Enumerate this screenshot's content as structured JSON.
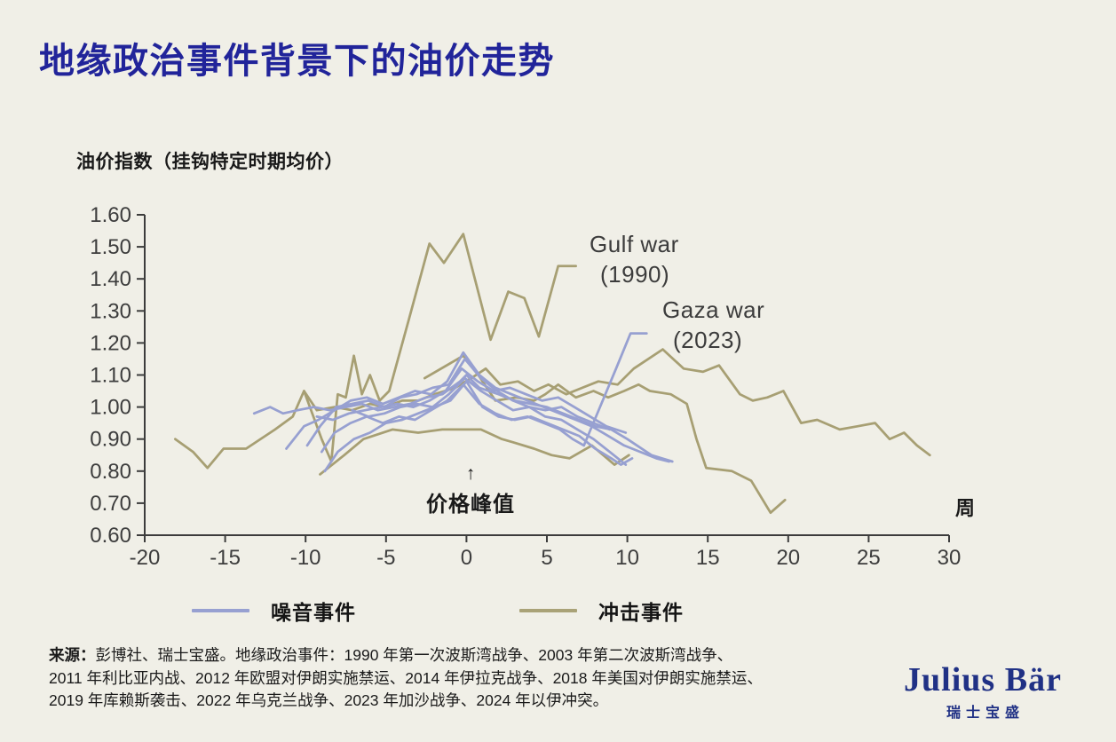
{
  "title": "地缘政治事件背景下的油价走势",
  "annotations": {
    "gulf": {
      "line1": "Gulf war",
      "line2": "(1990)"
    },
    "gaza": {
      "line1": "Gaza war",
      "line2": "(2023)"
    },
    "peak": {
      "arrow": "↑",
      "label": "价格峰值"
    }
  },
  "legend": {
    "items": [
      {
        "label": "噪音事件",
        "color": "#97a0d1"
      },
      {
        "label": "冲击事件",
        "color": "#a9a277"
      }
    ]
  },
  "source": {
    "prefix": "来源：",
    "line1": "彭博社、瑞士宝盛。地缘政治事件：1990 年第一次波斯湾战争、2003 年第二次波斯湾战争、",
    "line2": "2011 年利比亚内战、2012 年欧盟对伊朗实施禁运、2014 年伊拉克战争、2018 年美国对伊朗实施禁运、",
    "line3": "2019 年库赖斯袭击、2022 年乌克兰战争、2023 年加沙战争、2024 年以伊冲突。"
  },
  "logo": {
    "wordmark": "Julius Bär",
    "subtitle": "瑞士宝盛"
  },
  "chart_data": {
    "type": "line",
    "title": "地缘政治事件背景下的油价走势",
    "xlabel": "周",
    "ylabel": "油价指数（挂钩特定时期均价）",
    "xlim": [
      -20,
      30
    ],
    "ylim": [
      0.6,
      1.6
    ],
    "grid": false,
    "legend_position": "bottom",
    "x_axis": {
      "label": "周",
      "ticks": [
        -20,
        -15,
        -10,
        -5,
        0,
        5,
        10,
        15,
        20,
        25,
        30
      ],
      "tick_labels": [
        "-20",
        "-15",
        "-10",
        "-5",
        "0",
        "5",
        "10",
        "15",
        "20",
        "25",
        "30"
      ]
    },
    "y_axis": {
      "label": "油价指数（挂钩特定时期均价）",
      "ticks": [
        0.6,
        0.7,
        0.8,
        0.9,
        1.0,
        1.1,
        1.2,
        1.3,
        1.4,
        1.5,
        1.6
      ],
      "tick_labels": [
        "0.60",
        "0.70",
        "0.80",
        "0.90",
        "1.00",
        "1.10",
        "1.20",
        "1.30",
        "1.40",
        "1.50",
        "1.60"
      ]
    },
    "colors": {
      "噪音事件": "#97a0d1",
      "冲击事件": "#a79f73"
    },
    "annotations": [
      {
        "text": "Gulf war (1990)",
        "x": 7.5,
        "y": 1.44
      },
      {
        "text": "Gaza war (2023)",
        "x": 12,
        "y": 1.24
      },
      {
        "text": "价格峰值",
        "x": 0,
        "y": 0.72,
        "arrow": "↑"
      }
    ],
    "series": [
      {
        "id": "gulf-war-1990",
        "name": "Gulf war (1990)",
        "group": "冲击事件",
        "points": [
          [
            -10.1,
            1.05
          ],
          [
            -9.0,
            0.9
          ],
          [
            -8.4,
            0.83
          ],
          [
            -8.0,
            1.04
          ],
          [
            -7.5,
            1.03
          ],
          [
            -7.0,
            1.16
          ],
          [
            -6.5,
            1.04
          ],
          [
            -6.0,
            1.1
          ],
          [
            -5.4,
            1.02
          ],
          [
            -4.8,
            1.05
          ],
          [
            -3.6,
            1.27
          ],
          [
            -2.3,
            1.51
          ],
          [
            -1.4,
            1.45
          ],
          [
            -0.2,
            1.54
          ],
          [
            1.5,
            1.21
          ],
          [
            2.6,
            1.36
          ],
          [
            3.6,
            1.34
          ],
          [
            4.5,
            1.22
          ],
          [
            5.7,
            1.44
          ],
          [
            6.8,
            1.44
          ]
        ]
      },
      {
        "id": "shock-2",
        "name": "冲击事件-2",
        "group": "冲击事件",
        "points": [
          [
            -18.1,
            0.9
          ],
          [
            -17.0,
            0.86
          ],
          [
            -16.1,
            0.81
          ],
          [
            -15.1,
            0.87
          ],
          [
            -13.7,
            0.87
          ],
          [
            -11.9,
            0.93
          ],
          [
            -10.8,
            0.97
          ],
          [
            -10.1,
            1.05
          ],
          [
            -9.3,
            0.99
          ],
          [
            -8.2,
            1.0
          ],
          [
            -7.1,
            0.99
          ],
          [
            -6.0,
            1.01
          ],
          [
            -5.0,
            1.0
          ],
          [
            -4.0,
            1.02
          ],
          [
            -3.0,
            1.02
          ],
          [
            -2.0,
            1.04
          ],
          [
            -0.7,
            1.06
          ],
          [
            0.3,
            1.09
          ],
          [
            1.2,
            1.12
          ],
          [
            2.1,
            1.07
          ],
          [
            3.2,
            1.08
          ],
          [
            4.2,
            1.05
          ],
          [
            5.1,
            1.07
          ],
          [
            6.2,
            1.04
          ],
          [
            7.2,
            1.06
          ],
          [
            8.2,
            1.08
          ],
          [
            9.4,
            1.07
          ],
          [
            10.4,
            1.12
          ],
          [
            12.2,
            1.18
          ],
          [
            13.5,
            1.12
          ],
          [
            14.7,
            1.11
          ],
          [
            15.7,
            1.13
          ],
          [
            17.0,
            1.04
          ],
          [
            17.8,
            1.02
          ],
          [
            18.7,
            1.03
          ],
          [
            19.7,
            1.05
          ],
          [
            20.8,
            0.95
          ],
          [
            21.8,
            0.96
          ],
          [
            23.2,
            0.93
          ],
          [
            24.3,
            0.94
          ],
          [
            25.4,
            0.95
          ],
          [
            26.3,
            0.9
          ],
          [
            27.2,
            0.92
          ],
          [
            28.0,
            0.88
          ],
          [
            28.8,
            0.85
          ]
        ]
      },
      {
        "id": "shock-3",
        "name": "冲击事件-3",
        "group": "冲击事件",
        "points": [
          [
            -9.1,
            0.79
          ],
          [
            -7.6,
            0.85
          ],
          [
            -6.4,
            0.9
          ],
          [
            -4.6,
            0.93
          ],
          [
            -3.0,
            0.92
          ],
          [
            -1.5,
            0.93
          ],
          [
            0.0,
            0.93
          ],
          [
            0.9,
            0.93
          ],
          [
            2.2,
            0.9
          ],
          [
            2.9,
            0.89
          ],
          [
            4.2,
            0.87
          ],
          [
            5.3,
            0.85
          ],
          [
            6.4,
            0.84
          ],
          [
            7.8,
            0.88
          ],
          [
            9.2,
            0.82
          ],
          [
            10.1,
            0.85
          ]
        ]
      },
      {
        "id": "shock-4",
        "name": "冲击事件-4",
        "group": "冲击事件",
        "points": [
          [
            -2.6,
            1.09
          ],
          [
            -0.2,
            1.16
          ],
          [
            0.6,
            1.11
          ],
          [
            1.8,
            1.02
          ],
          [
            3.1,
            1.03
          ],
          [
            4.2,
            1.02
          ],
          [
            4.9,
            1.04
          ],
          [
            5.7,
            1.07
          ],
          [
            6.8,
            1.03
          ],
          [
            7.9,
            1.05
          ],
          [
            8.8,
            1.03
          ],
          [
            9.8,
            1.05
          ],
          [
            10.7,
            1.07
          ],
          [
            11.4,
            1.05
          ],
          [
            12.7,
            1.04
          ],
          [
            13.7,
            1.01
          ],
          [
            14.3,
            0.9
          ],
          [
            14.9,
            0.81
          ],
          [
            16.5,
            0.8
          ],
          [
            17.7,
            0.77
          ],
          [
            18.9,
            0.67
          ],
          [
            19.8,
            0.71
          ]
        ]
      },
      {
        "id": "noise-1",
        "name": "噪音事件-1",
        "group": "噪音事件",
        "points": [
          [
            -13.2,
            0.98
          ],
          [
            -12.2,
            1.0
          ],
          [
            -11.4,
            0.98
          ],
          [
            -10.5,
            0.99
          ],
          [
            -9.5,
            1.0
          ],
          [
            -8.5,
            0.99
          ],
          [
            -7.5,
            1.0
          ],
          [
            -6.5,
            1.01
          ],
          [
            -5.5,
            0.99
          ],
          [
            -4.5,
            1.0
          ],
          [
            -3.5,
            1.01
          ],
          [
            -2.5,
            1.03
          ],
          [
            -1.5,
            1.04
          ],
          [
            -0.4,
            1.08
          ],
          [
            0.0,
            1.1
          ],
          [
            0.8,
            1.06
          ],
          [
            2.0,
            1.04
          ],
          [
            3.0,
            1.02
          ],
          [
            4.0,
            1.01
          ],
          [
            5.0,
            1.0
          ],
          [
            6.0,
            0.98
          ],
          [
            7.0,
            0.96
          ],
          [
            8.0,
            0.94
          ],
          [
            9.0,
            0.93
          ],
          [
            10.0,
            0.9
          ],
          [
            11.5,
            0.85
          ],
          [
            12.8,
            0.83
          ]
        ]
      },
      {
        "id": "noise-2",
        "name": "噪音事件-2",
        "group": "噪音事件",
        "points": [
          [
            -11.2,
            0.87
          ],
          [
            -10.1,
            0.94
          ],
          [
            -9.2,
            0.96
          ],
          [
            -8.2,
            0.99
          ],
          [
            -7.2,
            1.02
          ],
          [
            -6.2,
            1.03
          ],
          [
            -5.2,
            1.01
          ],
          [
            -4.2,
            1.03
          ],
          [
            -3.2,
            1.05
          ],
          [
            -2.2,
            1.04
          ],
          [
            -1.2,
            1.08
          ],
          [
            -0.2,
            1.17
          ],
          [
            0.8,
            1.1
          ],
          [
            1.8,
            1.06
          ],
          [
            2.8,
            1.04
          ],
          [
            3.8,
            1.02
          ],
          [
            4.8,
            1.0
          ],
          [
            5.8,
            0.98
          ],
          [
            6.8,
            0.96
          ],
          [
            7.8,
            0.94
          ],
          [
            8.8,
            0.91
          ],
          [
            9.8,
            0.88
          ],
          [
            10.8,
            0.86
          ],
          [
            11.8,
            0.84
          ],
          [
            12.6,
            0.83
          ]
        ]
      },
      {
        "id": "noise-3",
        "name": "噪音事件-3",
        "group": "噪音事件",
        "points": [
          [
            -8.8,
            0.8
          ],
          [
            -8.0,
            0.86
          ],
          [
            -7.0,
            0.9
          ],
          [
            -6.0,
            0.92
          ],
          [
            -5.0,
            0.95
          ],
          [
            -4.0,
            0.96
          ],
          [
            -3.0,
            0.98
          ],
          [
            -2.0,
            1.0
          ],
          [
            -1.0,
            1.02
          ],
          [
            0.0,
            1.08
          ],
          [
            1.0,
            1.0
          ],
          [
            2.0,
            0.97
          ],
          [
            3.0,
            0.96
          ],
          [
            4.0,
            0.97
          ],
          [
            5.0,
            0.95
          ],
          [
            6.0,
            0.93
          ],
          [
            7.0,
            0.91
          ],
          [
            8.0,
            0.87
          ],
          [
            9.0,
            0.84
          ],
          [
            9.6,
            0.82
          ],
          [
            10.3,
            0.84
          ]
        ]
      },
      {
        "id": "noise-4",
        "name": "噪音事件-4",
        "group": "噪音事件",
        "points": [
          [
            -9.3,
            0.97
          ],
          [
            -8.3,
            0.96
          ],
          [
            -7.3,
            0.98
          ],
          [
            -6.3,
            0.99
          ],
          [
            -5.3,
            1.0
          ],
          [
            -4.3,
            1.01
          ],
          [
            -3.3,
            1.0
          ],
          [
            -2.3,
            1.02
          ],
          [
            -1.3,
            1.05
          ],
          [
            -0.3,
            1.12
          ],
          [
            0.7,
            1.08
          ],
          [
            1.7,
            1.05
          ],
          [
            2.7,
            1.06
          ],
          [
            3.7,
            1.04
          ],
          [
            4.7,
            1.02
          ],
          [
            5.7,
            1.03
          ],
          [
            6.7,
            1.0
          ],
          [
            7.7,
            0.97
          ],
          [
            8.7,
            0.94
          ],
          [
            9.9,
            0.92
          ]
        ]
      },
      {
        "id": "noise-5",
        "name": "噪音事件-5",
        "group": "噪音事件",
        "points": [
          [
            -7.1,
            0.99
          ],
          [
            -6.1,
            0.97
          ],
          [
            -5.1,
            0.98
          ],
          [
            -4.1,
            1.0
          ],
          [
            -3.1,
            1.01
          ],
          [
            -2.1,
            1.0
          ],
          [
            -1.1,
            1.04
          ],
          [
            -0.1,
            1.09
          ],
          [
            0.9,
            1.05
          ],
          [
            1.9,
            1.02
          ],
          [
            2.9,
            0.99
          ],
          [
            3.9,
            1.0
          ],
          [
            4.9,
            0.97
          ],
          [
            5.9,
            0.96
          ],
          [
            6.9,
            0.93
          ],
          [
            7.9,
            0.9
          ],
          [
            8.9,
            0.86
          ],
          [
            9.9,
            0.82
          ]
        ]
      },
      {
        "id": "noise-6",
        "name": "噪音事件-6",
        "group": "噪音事件",
        "points": [
          [
            -9.9,
            0.88
          ],
          [
            -9.1,
            0.94
          ],
          [
            -8.1,
            1.0
          ],
          [
            -7.1,
            1.01
          ],
          [
            -6.1,
            1.02
          ],
          [
            -5.1,
            1.0
          ],
          [
            -4.1,
            1.03
          ],
          [
            -3.1,
            1.04
          ],
          [
            -2.1,
            1.06
          ],
          [
            -1.1,
            1.07
          ],
          [
            -0.1,
            1.15
          ],
          [
            0.9,
            1.09
          ],
          [
            1.9,
            1.05
          ],
          [
            2.9,
            1.02
          ],
          [
            3.9,
            1.0
          ],
          [
            4.9,
            0.99
          ],
          [
            5.9,
            1.0
          ],
          [
            6.9,
            0.97
          ],
          [
            7.9,
            0.95
          ],
          [
            8.9,
            0.93
          ]
        ]
      },
      {
        "id": "gaza-war-2023",
        "name": "Gaza war (2023)",
        "group": "噪音事件",
        "points": [
          [
            -9.0,
            0.86
          ],
          [
            -8.2,
            0.92
          ],
          [
            -7.2,
            0.95
          ],
          [
            -6.2,
            0.97
          ],
          [
            -5.2,
            0.95
          ],
          [
            -4.2,
            0.97
          ],
          [
            -3.2,
            0.96
          ],
          [
            -2.2,
            0.99
          ],
          [
            -1.2,
            1.02
          ],
          [
            -0.2,
            1.07
          ],
          [
            0.8,
            1.01
          ],
          [
            1.8,
            0.98
          ],
          [
            2.8,
            0.96
          ],
          [
            3.8,
            0.97
          ],
          [
            4.8,
            0.95
          ],
          [
            5.8,
            0.93
          ],
          [
            6.6,
            0.9
          ],
          [
            7.3,
            0.88
          ],
          [
            8.3,
            1.0
          ],
          [
            9.3,
            1.12
          ],
          [
            10.2,
            1.23
          ],
          [
            11.2,
            1.23
          ]
        ]
      }
    ]
  }
}
